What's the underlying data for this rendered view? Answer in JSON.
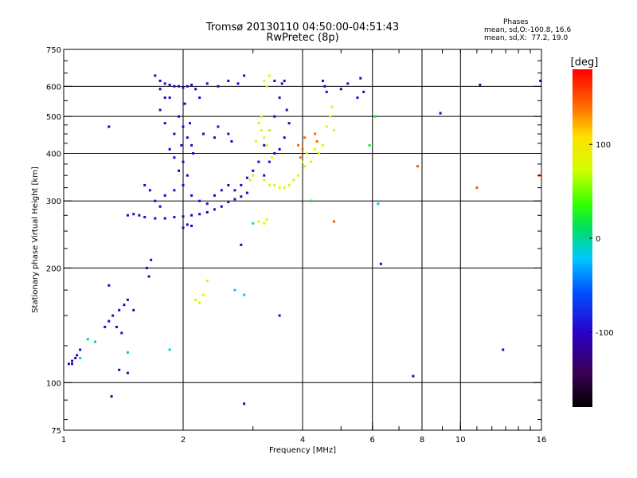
{
  "header": {
    "title_line1": "Tromsø 20130110 04:50:00-04:51:43",
    "title_line2": "RwPretec (8p)",
    "stats_title": "Phases",
    "stats_line1": "mean, sd,O:-100.8, 16.6",
    "stats_line2": "mean, sd,X:  77.2, 19.0"
  },
  "chart_data": {
    "type": "scatter",
    "xlabel": "Frequency [MHz]",
    "ylabel": "Stationary phase Virtual Height [km]",
    "xscale": "log",
    "yscale": "log",
    "xlim": [
      1,
      16
    ],
    "ylim": [
      75,
      750
    ],
    "xticks": [
      1,
      2,
      4,
      6,
      8,
      10,
      16
    ],
    "xtick_labels": [
      "1",
      "2",
      "4",
      "6",
      "8",
      "10",
      "16"
    ],
    "x_gridlines": [
      2,
      4,
      6,
      8,
      10
    ],
    "yticks": [
      75,
      100,
      200,
      300,
      400,
      500,
      600,
      750
    ],
    "ytick_labels": [
      "75",
      "100",
      "200",
      "300",
      "400",
      "500",
      "600",
      "750"
    ],
    "y_gridlines": [
      100,
      200,
      300,
      400,
      500,
      600
    ],
    "colorbar": {
      "label": "[deg]",
      "range": [
        -180,
        180
      ],
      "ticks": [
        100,
        0,
        -100
      ],
      "tick_labels": [
        "100",
        "0",
        "-100"
      ]
    },
    "series": [
      {
        "phase_deg": -100,
        "points": [
          [
            1.03,
            112
          ],
          [
            1.05,
            114
          ],
          [
            1.08,
            118
          ],
          [
            1.1,
            122
          ],
          [
            1.27,
            140
          ],
          [
            1.3,
            145
          ],
          [
            1.33,
            150
          ],
          [
            1.36,
            140
          ],
          [
            1.38,
            155
          ],
          [
            1.4,
            135
          ],
          [
            1.42,
            160
          ],
          [
            1.45,
            165
          ],
          [
            1.3,
            180
          ],
          [
            1.62,
            200
          ],
          [
            1.64,
            190
          ],
          [
            1.66,
            210
          ],
          [
            1.5,
            155
          ],
          [
            1.55,
            275
          ],
          [
            1.6,
            272
          ],
          [
            1.7,
            270
          ],
          [
            1.8,
            270
          ],
          [
            1.9,
            272
          ],
          [
            2.0,
            273
          ],
          [
            2.1,
            275
          ],
          [
            2.2,
            277
          ],
          [
            2.3,
            280
          ],
          [
            2.4,
            285
          ],
          [
            2.5,
            290
          ],
          [
            2.6,
            298
          ],
          [
            2.7,
            303
          ],
          [
            2.8,
            308
          ],
          [
            2.9,
            315
          ],
          [
            1.6,
            330
          ],
          [
            1.65,
            320
          ],
          [
            1.7,
            300
          ],
          [
            1.75,
            290
          ],
          [
            1.8,
            310
          ],
          [
            1.9,
            320
          ],
          [
            2.0,
            330
          ],
          [
            2.1,
            310
          ],
          [
            2.2,
            300
          ],
          [
            2.3,
            295
          ],
          [
            2.4,
            310
          ],
          [
            2.5,
            320
          ],
          [
            2.6,
            330
          ],
          [
            2.7,
            320
          ],
          [
            2.8,
            330
          ],
          [
            2.9,
            345
          ],
          [
            3.0,
            360
          ],
          [
            3.1,
            380
          ],
          [
            3.2,
            420
          ],
          [
            3.3,
            460
          ],
          [
            3.4,
            500
          ],
          [
            3.5,
            560
          ],
          [
            3.6,
            620
          ],
          [
            1.7,
            640
          ],
          [
            1.75,
            620
          ],
          [
            1.8,
            610
          ],
          [
            1.85,
            605
          ],
          [
            1.9,
            600
          ],
          [
            1.95,
            600
          ],
          [
            2.0,
            595
          ],
          [
            2.05,
            600
          ],
          [
            2.1,
            605
          ],
          [
            2.15,
            590
          ],
          [
            2.3,
            610
          ],
          [
            2.45,
            600
          ],
          [
            2.6,
            620
          ],
          [
            2.75,
            610
          ],
          [
            2.85,
            640
          ],
          [
            3.4,
            620
          ],
          [
            3.55,
            610
          ],
          [
            1.75,
            520
          ],
          [
            1.8,
            480
          ],
          [
            1.85,
            560
          ],
          [
            1.9,
            450
          ],
          [
            1.95,
            500
          ],
          [
            1.98,
            420
          ],
          [
            2.0,
            470
          ],
          [
            2.02,
            540
          ],
          [
            2.05,
            440
          ],
          [
            2.08,
            480
          ],
          [
            2.1,
            420
          ],
          [
            2.12,
            400
          ],
          [
            2.0,
            380
          ],
          [
            1.9,
            390
          ],
          [
            1.85,
            410
          ],
          [
            1.95,
            360
          ],
          [
            2.05,
            350
          ],
          [
            1.75,
            590
          ],
          [
            1.8,
            560
          ],
          [
            2.2,
            560
          ],
          [
            2.25,
            450
          ],
          [
            2.4,
            440
          ],
          [
            2.45,
            470
          ],
          [
            2.6,
            450
          ],
          [
            2.65,
            430
          ],
          [
            3.2,
            350
          ],
          [
            3.3,
            380
          ],
          [
            3.4,
            400
          ],
          [
            3.5,
            410
          ],
          [
            3.6,
            440
          ],
          [
            3.65,
            520
          ],
          [
            3.7,
            480
          ],
          [
            4.5,
            620
          ],
          [
            4.6,
            580
          ],
          [
            4.55,
            600
          ],
          [
            5.0,
            590
          ],
          [
            5.2,
            610
          ],
          [
            5.6,
            630
          ],
          [
            5.7,
            580
          ],
          [
            5.5,
            560
          ],
          [
            2.0,
            255
          ],
          [
            2.05,
            260
          ],
          [
            2.1,
            258
          ],
          [
            1.45,
            275
          ],
          [
            1.5,
            277
          ],
          [
            1.05,
            112
          ],
          [
            1.07,
            116
          ]
        ]
      },
      {
        "phase_deg": 80,
        "points": [
          [
            3.1,
            480
          ],
          [
            3.15,
            460
          ],
          [
            3.2,
            440
          ],
          [
            3.25,
            420
          ],
          [
            3.3,
            460
          ],
          [
            3.15,
            500
          ],
          [
            3.05,
            430
          ],
          [
            3.35,
            390
          ],
          [
            3.2,
            620
          ],
          [
            3.3,
            640
          ],
          [
            3.25,
            600
          ],
          [
            3.2,
            340
          ],
          [
            3.3,
            330
          ],
          [
            3.4,
            330
          ],
          [
            3.5,
            325
          ],
          [
            3.6,
            325
          ],
          [
            3.7,
            330
          ],
          [
            3.8,
            340
          ],
          [
            3.9,
            350
          ],
          [
            4.0,
            380
          ],
          [
            4.05,
            370
          ],
          [
            4.1,
            400
          ],
          [
            4.2,
            380
          ],
          [
            4.3,
            410
          ],
          [
            4.4,
            400
          ],
          [
            4.5,
            420
          ],
          [
            4.6,
            470
          ],
          [
            4.7,
            500
          ],
          [
            4.75,
            530
          ],
          [
            4.8,
            460
          ],
          [
            3.1,
            265
          ],
          [
            3.2,
            262
          ],
          [
            3.25,
            268
          ],
          [
            2.15,
            165
          ],
          [
            2.2,
            162
          ],
          [
            2.25,
            170
          ],
          [
            2.3,
            185
          ],
          [
            3.0,
            350
          ],
          [
            2.95,
            340
          ]
        ]
      },
      {
        "phase_deg": 140,
        "points": [
          [
            3.9,
            420
          ],
          [
            4.0,
            410
          ],
          [
            4.05,
            440
          ],
          [
            3.95,
            390
          ],
          [
            4.3,
            450
          ],
          [
            4.35,
            430
          ]
        ]
      },
      {
        "phase_deg": -20,
        "points": [
          [
            1.85,
            122
          ],
          [
            2.7,
            175
          ],
          [
            2.85,
            170
          ],
          [
            6.2,
            295
          ]
        ]
      },
      {
        "phase_deg": 20,
        "points": [
          [
            6.1,
            500
          ],
          [
            5.9,
            420
          ],
          [
            4.2,
            300
          ],
          [
            3.0,
            262
          ]
        ]
      },
      {
        "phase_deg": 150,
        "points": [
          [
            15.8,
            350
          ],
          [
            11.0,
            325
          ],
          [
            4.8,
            265
          ],
          [
            7.8,
            370
          ]
        ]
      },
      {
        "phase_deg": -110,
        "points": [
          [
            1.32,
            92
          ],
          [
            1.38,
            108
          ],
          [
            1.45,
            106
          ],
          [
            2.85,
            88
          ],
          [
            1.3,
            470
          ],
          [
            7.6,
            104
          ],
          [
            8.9,
            510
          ],
          [
            11.2,
            605
          ],
          [
            6.3,
            205
          ],
          [
            3.5,
            150
          ],
          [
            2.8,
            230
          ],
          [
            12.8,
            122
          ],
          [
            15.9,
            620
          ]
        ]
      },
      {
        "phase_deg": 0,
        "points": [
          [
            1.1,
            116
          ],
          [
            1.15,
            130
          ],
          [
            1.2,
            128
          ],
          [
            1.45,
            120
          ]
        ]
      }
    ]
  }
}
